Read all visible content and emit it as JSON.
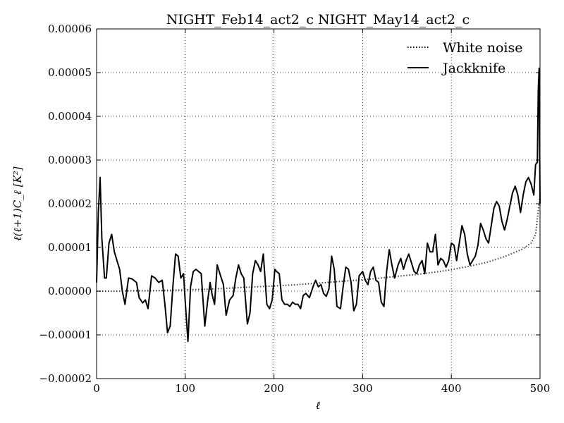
{
  "chart_data": {
    "type": "line",
    "title": "NIGHT_Feb14_act2_c NIGHT_May14_act2_c",
    "xlabel": "ℓ",
    "ylabel": "ℓ(ℓ+1)C_ℓ [K²]",
    "xlim": [
      0,
      500
    ],
    "ylim": [
      -2e-05,
      6e-05
    ],
    "x_ticks": [
      "0",
      "100",
      "200",
      "300",
      "400",
      "500"
    ],
    "y_ticks": [
      "−0.00002",
      "−0.00001",
      "0.00000",
      "0.00001",
      "0.00002",
      "0.00003",
      "0.00004",
      "0.00005",
      "0.00006"
    ],
    "grid": true,
    "legend_position": "top-right",
    "series": [
      {
        "name": "White noise",
        "style": "dotted",
        "color": "#000000",
        "x": [
          0,
          20,
          40,
          60,
          80,
          100,
          120,
          140,
          160,
          180,
          200,
          220,
          240,
          260,
          280,
          300,
          320,
          340,
          360,
          380,
          400,
          420,
          440,
          460,
          480,
          490,
          495,
          500
        ],
        "y": [
          0.0,
          0.0,
          1e-07,
          1e-07,
          2e-07,
          3e-07,
          4e-07,
          6e-07,
          8e-07,
          1e-06,
          1.2e-06,
          1.4e-06,
          1.7e-06,
          2e-06,
          2.3e-06,
          2.6e-06,
          3e-06,
          3.4e-06,
          3.8e-06,
          4.3e-06,
          4.9e-06,
          5.7e-06,
          6.6e-06,
          7.9e-06,
          9.6e-06,
          1.1e-05,
          1.3e-05,
          2.2e-05
        ]
      },
      {
        "name": "Jackknife",
        "style": "solid",
        "color": "#000000",
        "x": [
          0,
          2,
          4,
          6,
          9,
          11,
          14,
          17,
          20,
          23,
          26,
          29,
          32,
          36,
          40,
          45,
          48,
          52,
          55,
          58,
          62,
          66,
          70,
          74,
          77,
          80,
          83,
          86,
          89,
          92,
          95,
          98,
          100,
          103,
          106,
          109,
          112,
          115,
          118,
          122,
          125,
          128,
          130,
          133,
          136,
          139,
          143,
          146,
          150,
          154,
          157,
          160,
          163,
          166,
          170,
          173,
          176,
          179,
          182,
          185,
          188,
          192,
          195,
          198,
          201,
          203,
          206,
          209,
          212,
          215,
          218,
          221,
          224,
          227,
          230,
          233,
          236,
          240,
          244,
          247,
          250,
          253,
          256,
          259,
          262,
          265,
          268,
          271,
          275,
          278,
          281,
          284,
          287,
          290,
          293,
          296,
          300,
          303,
          306,
          309,
          312,
          315,
          318,
          321,
          324,
          327,
          330,
          333,
          336,
          340,
          343,
          346,
          349,
          352,
          355,
          358,
          361,
          364,
          367,
          370,
          373,
          376,
          379,
          382,
          385,
          388,
          391,
          394,
          397,
          400,
          403,
          406,
          409,
          412,
          415,
          418,
          421,
          424,
          427,
          430,
          433,
          436,
          439,
          442,
          445,
          448,
          451,
          454,
          457,
          460,
          463,
          466,
          469,
          472,
          475,
          478,
          481,
          484,
          487,
          490,
          493,
          495,
          497,
          498,
          499,
          500
        ],
        "y": [
          2e-06,
          1.8e-05,
          2.6e-05,
          1.2e-05,
          3e-06,
          3e-06,
          1.1e-05,
          1.3e-05,
          9e-06,
          7e-06,
          5e-06,
          0.0,
          -3e-06,
          3e-06,
          2.8e-06,
          2e-06,
          -1.5e-06,
          -2.7e-06,
          -2e-06,
          -4e-06,
          3.5e-06,
          3e-06,
          2e-06,
          2.5e-06,
          -3e-06,
          -9.5e-06,
          -8e-06,
          1e-06,
          8.5e-06,
          8e-06,
          3e-06,
          4e-06,
          -2.5e-06,
          -1.15e-05,
          1e-06,
          4.5e-06,
          5e-06,
          4.5e-06,
          4e-06,
          -8e-06,
          -2.5e-06,
          2e-06,
          -5e-07,
          -3e-06,
          6e-06,
          4e-06,
          1.5e-06,
          -5.5e-06,
          -2e-06,
          -1e-06,
          3e-06,
          6e-06,
          4e-06,
          3e-06,
          -7.5e-06,
          -5e-06,
          4e-06,
          7e-06,
          6e-06,
          4.5e-06,
          8.5e-06,
          -3e-06,
          -4e-06,
          -2e-06,
          5e-06,
          4.5e-06,
          4e-06,
          -2e-06,
          -3e-06,
          -3e-06,
          -3.5e-06,
          -2.5e-06,
          -3e-06,
          -3e-06,
          -4e-06,
          -1e-06,
          -5e-07,
          -1.5e-06,
          1e-06,
          2.5e-06,
          1e-06,
          1.5e-06,
          -5e-07,
          -1.2e-06,
          5e-07,
          8e-06,
          5e-06,
          -3.5e-06,
          -4e-06,
          1e-06,
          5.5e-06,
          5e-06,
          2e-06,
          -4.5e-06,
          -3e-06,
          3.5e-06,
          4.5e-06,
          2.5e-06,
          1.5e-06,
          4.5e-06,
          5.5e-06,
          2.5e-06,
          2e-06,
          -2.5e-06,
          -3.5e-06,
          4.5e-06,
          9.5e-06,
          6e-06,
          3e-06,
          6e-06,
          7.5e-06,
          5e-06,
          7e-06,
          8.5e-06,
          6.5e-06,
          4.5e-06,
          4e-06,
          6e-06,
          7e-06,
          4e-06,
          1.1e-05,
          9e-06,
          9e-06,
          1.3e-05,
          6e-06,
          7.5e-06,
          7e-06,
          5.5e-06,
          7e-06,
          1.1e-05,
          1.05e-05,
          7e-06,
          1.1e-05,
          1.5e-05,
          1.3e-05,
          8.5e-06,
          6e-06,
          7e-06,
          8e-06,
          1.05e-05,
          1.55e-05,
          1.4e-05,
          1.2e-05,
          1.1e-05,
          1.5e-05,
          1.9e-05,
          2.05e-05,
          1.95e-05,
          1.6e-05,
          1.4e-05,
          1.65e-05,
          1.95e-05,
          2.25e-05,
          2.4e-05,
          2.2e-05,
          1.8e-05,
          2.2e-05,
          2.5e-05,
          2.6e-05,
          2.45e-05,
          2.2e-05,
          2.9e-05,
          2.95e-05,
          4.6e-05,
          5.1e-05,
          2e-05
        ]
      }
    ]
  }
}
